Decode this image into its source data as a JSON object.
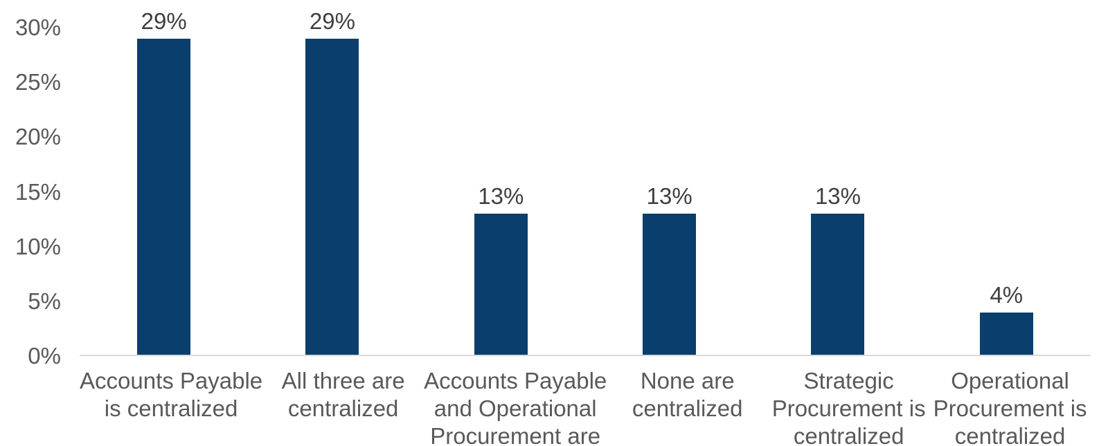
{
  "chart_data": {
    "type": "bar",
    "title": "",
    "xlabel": "",
    "ylabel": "",
    "categories": [
      "Accounts Payable is centralized",
      "All three are centralized",
      "Accounts Payable and Operational Procurement are",
      "None are centralized",
      "Strategic Procurement is centralized",
      "Operational Procurement is centralized"
    ],
    "category_lines": [
      [
        "Accounts Payable",
        "is centralized",
        ""
      ],
      [
        "All three are",
        "centralized",
        ""
      ],
      [
        "Accounts Payable",
        "and Operational",
        "Procurement are"
      ],
      [
        "None are",
        "centralized",
        ""
      ],
      [
        "Strategic",
        "Procurement is",
        "centralized"
      ],
      [
        "Operational",
        "Procurement is",
        "centralized"
      ]
    ],
    "values": [
      29,
      29,
      13,
      13,
      13,
      4
    ],
    "data_labels": [
      "29%",
      "29%",
      "13%",
      "13%",
      "13%",
      "4%"
    ],
    "y_ticks": [
      "30%",
      "25%",
      "20%",
      "15%",
      "10%",
      "5%",
      "0%"
    ],
    "ylim": [
      0,
      30
    ],
    "y_tick_step": 5,
    "grid": false,
    "legend": "none",
    "bar_color": "#0a3e6d",
    "axis_line_color": "#d9d9d9",
    "data_label_color": "#3f3f3f",
    "tick_label_color": "#595959"
  }
}
